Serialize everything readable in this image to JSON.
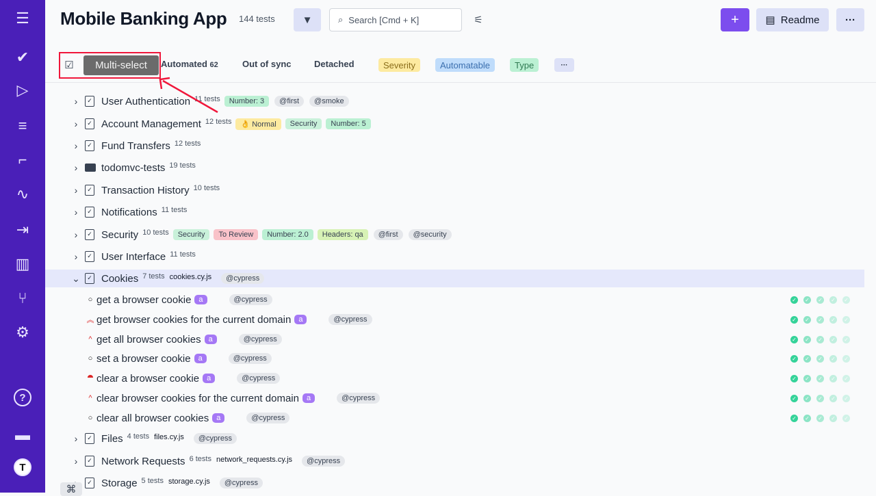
{
  "sidebar": {
    "icons": [
      "menu-icon",
      "check-icon",
      "play-icon",
      "list-check-icon",
      "steps-icon",
      "pulse-icon",
      "import-icon",
      "chart-icon",
      "branch-icon",
      "gear-icon",
      "help-icon",
      "folder-icon",
      "avatar-icon"
    ]
  },
  "header": {
    "title": "Mobile Banking App",
    "count": "144 tests",
    "search_placeholder": "Search [Cmd + K]",
    "readme": "Readme",
    "add": "+",
    "more": "···"
  },
  "filters": {
    "tooltip": "Multi-select",
    "automated": "Automated",
    "automated_count": "62",
    "out_of_sync": "Out of sync",
    "detached": "Detached",
    "severity": "Severity",
    "automatable": "Automatable",
    "type": "Type",
    "more": "···"
  },
  "colors": {
    "sidebar": "#4a1fb8",
    "accent": "#7c4dee",
    "success": "#34d399"
  },
  "tree": [
    {
      "name": "User Authentication",
      "count": "11 tests",
      "tags": [
        [
          "Number: 3",
          "#bbf0d3"
        ]
      ],
      "ats": [
        "@first",
        "@smoke"
      ]
    },
    {
      "name": "Account Management",
      "count": "12 tests",
      "tags": [
        [
          "👌 Normal",
          "#fdeaa0"
        ],
        [
          "Security",
          "#c9f1da"
        ],
        [
          "Number: 5",
          "#bbf0d3"
        ]
      ],
      "ats": []
    },
    {
      "name": "Fund Transfers",
      "count": "12 tests",
      "tags": [],
      "ats": []
    },
    {
      "name": "todomvc-tests",
      "count": "19 tests",
      "folder": true,
      "tags": [],
      "ats": []
    },
    {
      "name": "Transaction History",
      "count": "10 tests",
      "tags": [],
      "ats": []
    },
    {
      "name": "Notifications",
      "count": "11 tests",
      "tags": [],
      "ats": []
    },
    {
      "name": "Security",
      "count": "10 tests",
      "tags": [
        [
          "Security",
          "#c9f1da"
        ],
        [
          "To Review",
          "#f9c2c9"
        ],
        [
          "Number: 2.0",
          "#bbf0d3"
        ],
        [
          "Headers: qa",
          "#d7f2b5"
        ]
      ],
      "ats": [
        "@first",
        "@security"
      ]
    },
    {
      "name": "User Interface",
      "count": "11 tests",
      "tags": [],
      "ats": []
    },
    {
      "name": "Cookies",
      "count": "7 tests",
      "file": "cookies.cy.js",
      "expanded": true,
      "tags": [],
      "ats": [
        "@cypress"
      ]
    },
    {
      "test": true,
      "name": "get a browser cookie",
      "pri": "○",
      "ats": [
        "@cypress"
      ]
    },
    {
      "test": true,
      "name": "get browser cookies for the current domain",
      "pri": "︽",
      "ats": [
        "@cypress"
      ]
    },
    {
      "test": true,
      "name": "get all browser cookies",
      "pri": "^",
      "ats": [
        "@cypress"
      ]
    },
    {
      "test": true,
      "name": "set a browser cookie",
      "pri": "○",
      "ats": [
        "@cypress"
      ]
    },
    {
      "test": true,
      "name": "clear a browser cookie",
      "pri": "⯊",
      "ats": [
        "@cypress"
      ]
    },
    {
      "test": true,
      "name": "clear browser cookies for the current domain",
      "pri": "^",
      "ats": [
        "@cypress"
      ]
    },
    {
      "test": true,
      "name": "clear all browser cookies",
      "pri": "○",
      "ats": [
        "@cypress"
      ]
    },
    {
      "name": "Files",
      "count": "4 tests",
      "file": "files.cy.js",
      "tags": [],
      "ats": [
        "@cypress"
      ]
    },
    {
      "name": "Network Requests",
      "count": "6 tests",
      "file": "network_requests.cy.js",
      "tags": [],
      "ats": [
        "@cypress"
      ]
    },
    {
      "name": "Storage",
      "count": "5 tests",
      "file": "storage.cy.js",
      "tags": [],
      "ats": [
        "@cypress"
      ]
    }
  ],
  "automated_label": "a",
  "run_history_opacity": [
    1,
    0.55,
    0.4,
    0.28,
    0.2
  ]
}
